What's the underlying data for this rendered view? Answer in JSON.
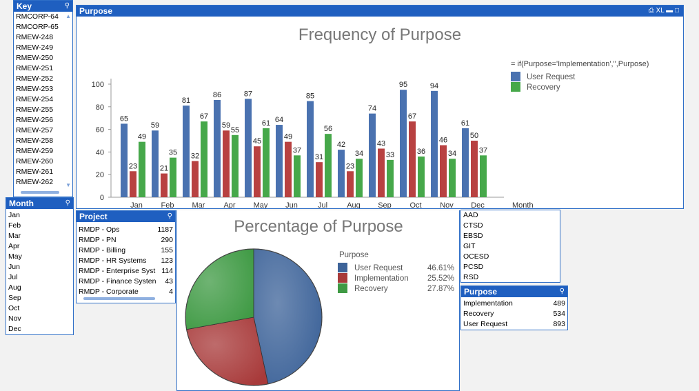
{
  "key_box": {
    "title": "Key",
    "items": [
      "RMCORP-64",
      "RMCORP-65",
      "RMEW-248",
      "RMEW-249",
      "RMEW-250",
      "RMEW-251",
      "RMEW-252",
      "RMEW-253",
      "RMEW-254",
      "RMEW-255",
      "RMEW-256",
      "RMEW-257",
      "RMEW-258",
      "RMEW-259",
      "RMEW-260",
      "RMEW-261",
      "RMEW-262"
    ]
  },
  "month_box": {
    "title": "Month",
    "items": [
      "Jan",
      "Feb",
      "Mar",
      "Apr",
      "May",
      "Jun",
      "Jul",
      "Aug",
      "Sep",
      "Oct",
      "Nov",
      "Dec"
    ]
  },
  "project_box": {
    "title": "Project",
    "rows": [
      {
        "name": "RMDP - Ops",
        "value": "1187"
      },
      {
        "name": "RMDP - PN",
        "value": "290"
      },
      {
        "name": "RMDP - Billing",
        "value": "155"
      },
      {
        "name": "RMDP - HR Systems",
        "value": "123"
      },
      {
        "name": "RMDP - Enterprise Syst",
        "value": "114"
      },
      {
        "name": "RMDP - Finance Systen",
        "value": "43"
      },
      {
        "name": "RMDP - Corporate",
        "value": "4"
      }
    ]
  },
  "dept_box": {
    "items": [
      "AAD",
      "CTSD",
      "EBSD",
      "GIT",
      "OCESD",
      "PCSD",
      "RSD"
    ]
  },
  "purpose_box": {
    "title": "Purpose",
    "rows": [
      {
        "name": "Implementation",
        "value": "489"
      },
      {
        "name": "Recovery",
        "value": "534"
      },
      {
        "name": "User Request",
        "value": "893"
      }
    ]
  },
  "purpose_chart_box": {
    "title": "Purpose",
    "toolbar": {
      "print_icon": "printer-icon",
      "xl_label": "XL",
      "minimize": "minimize-icon",
      "maximize": "maximize-icon"
    }
  },
  "colors": {
    "user_request": "#4a72b0",
    "implementation": "#b84141",
    "recovery": "#46a84a"
  },
  "chart_data": [
    {
      "type": "bar",
      "title": "Frequency of Purpose",
      "xlabel": "Month",
      "ylabel": "",
      "ylim": [
        0,
        100
      ],
      "yticks": [
        0,
        20,
        40,
        60,
        80,
        100
      ],
      "categories": [
        "Jan",
        "Feb",
        "Mar",
        "Apr",
        "May",
        "Jun",
        "Jul",
        "Aug",
        "Sep",
        "Oct",
        "Nov",
        "Dec"
      ],
      "legend_title": "= if(Purpose='Implementation','',Purpose)",
      "series": [
        {
          "name": "User Request",
          "color": "#4a72b0",
          "values": [
            65,
            59,
            81,
            86,
            87,
            64,
            85,
            42,
            74,
            95,
            94,
            61
          ]
        },
        {
          "name": "",
          "color": "#b84141",
          "values": [
            23,
            21,
            32,
            59,
            45,
            49,
            31,
            23,
            43,
            67,
            46,
            50
          ]
        },
        {
          "name": "Recovery",
          "color": "#46a84a",
          "values": [
            49,
            35,
            67,
            55,
            61,
            37,
            56,
            34,
            33,
            36,
            34,
            37
          ]
        }
      ]
    },
    {
      "type": "pie",
      "title": "Percentage of Purpose",
      "legend_title": "Purpose",
      "slices": [
        {
          "name": "User Request",
          "value": 46.61,
          "label": "46.61%",
          "color": "#3d6399"
        },
        {
          "name": "Implementation",
          "value": 25.52,
          "label": "25.52%",
          "color": "#a83a3a"
        },
        {
          "name": "Recovery",
          "value": 27.87,
          "label": "27.87%",
          "color": "#3f9a44"
        }
      ]
    }
  ]
}
